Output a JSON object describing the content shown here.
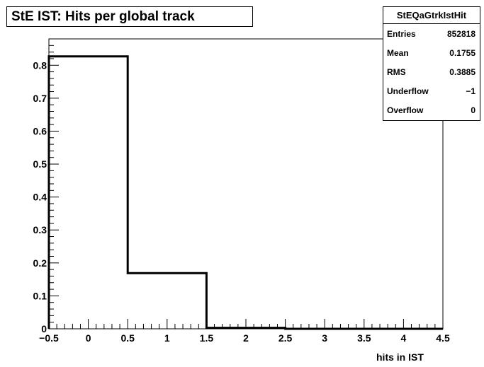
{
  "title": "StE IST: Hits per global track",
  "stats": {
    "name": "StEQaGtrkIstHit",
    "rows": [
      {
        "label": "Entries",
        "value": "852818"
      },
      {
        "label": "Mean",
        "value": "0.1755"
      },
      {
        "label": "RMS",
        "value": "0.3885"
      },
      {
        "label": "Underflow",
        "value": "−1"
      },
      {
        "label": "Overflow",
        "value": "0"
      }
    ]
  },
  "chart_data": {
    "type": "bar",
    "title": "StE IST: Hits per global track",
    "xlabel": "hits in IST",
    "ylabel": "",
    "xlim": [
      -0.5,
      4.5
    ],
    "ylim": [
      0,
      0.88
    ],
    "bin_edges": [
      -0.5,
      0.5,
      1.5,
      2.5,
      3.5,
      4.5
    ],
    "values": [
      0.827,
      0.169,
      0.003,
      0,
      0
    ],
    "x_ticks": [
      {
        "value": -0.5,
        "label": "−0.5"
      },
      {
        "value": 0,
        "label": "0"
      },
      {
        "value": 0.5,
        "label": "0.5"
      },
      {
        "value": 1,
        "label": "1"
      },
      {
        "value": 1.5,
        "label": "1.5"
      },
      {
        "value": 2,
        "label": "2"
      },
      {
        "value": 2.5,
        "label": "2.5"
      },
      {
        "value": 3,
        "label": "3"
      },
      {
        "value": 3.5,
        "label": "3.5"
      },
      {
        "value": 4,
        "label": "4"
      },
      {
        "value": 4.5,
        "label": "4.5"
      }
    ],
    "y_ticks": [
      {
        "value": 0,
        "label": "0"
      },
      {
        "value": 0.1,
        "label": "0.1"
      },
      {
        "value": 0.2,
        "label": "0.2"
      },
      {
        "value": 0.3,
        "label": "0.3"
      },
      {
        "value": 0.4,
        "label": "0.4"
      },
      {
        "value": 0.5,
        "label": "0.5"
      },
      {
        "value": 0.6,
        "label": "0.6"
      },
      {
        "value": 0.7,
        "label": "0.7"
      },
      {
        "value": 0.8,
        "label": "0.8"
      }
    ],
    "grid": false,
    "legend": "none",
    "line_color": "#000000"
  }
}
